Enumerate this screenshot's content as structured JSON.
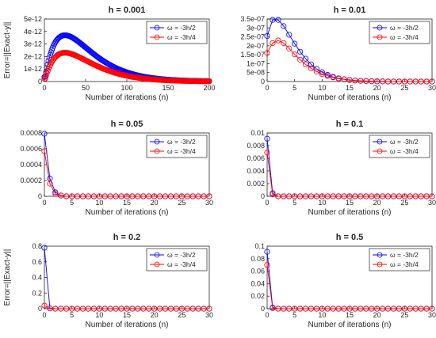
{
  "chart_data": [
    {
      "type": "line",
      "title": "h = 0.001",
      "xlabel": "Number of iterations (n)",
      "ylabel": "Error=||Exact-y||",
      "xlim": [
        0,
        200
      ],
      "ylim": [
        0,
        5e-12
      ],
      "xticks": [
        0,
        50,
        100,
        150,
        200
      ],
      "xtick_labels": [
        "0",
        "50",
        "100",
        "150",
        "200"
      ],
      "yticks": [
        0,
        1e-12,
        2e-12,
        3e-12,
        4e-12,
        5e-12
      ],
      "ytick_labels": [
        "0",
        "1e-12",
        "2e-12",
        "3e-12",
        "4e-12",
        "5e-12"
      ],
      "legend_position": "top-right",
      "series": [
        {
          "name": "ω = -3h/2",
          "color": "#0000ff",
          "curve": "decay",
          "n_max": 200,
          "peak_x": 25,
          "peak_y": 3.7e-12
        },
        {
          "name": "ω = -3h/4",
          "color": "#ff0000",
          "curve": "decay",
          "n_max": 200,
          "peak_x": 25,
          "peak_y": 2.3e-12
        }
      ]
    },
    {
      "type": "line",
      "title": "h = 0.01",
      "xlabel": "Number of iterations (n)",
      "ylabel": "",
      "xlim": [
        0,
        30
      ],
      "ylim": [
        0,
        3.5e-07
      ],
      "xticks": [
        0,
        5,
        10,
        15,
        20,
        25,
        30
      ],
      "xtick_labels": [
        "0",
        "5",
        "10",
        "15",
        "20",
        "25",
        "30"
      ],
      "yticks": [
        0,
        5e-08,
        1e-07,
        1.5e-07,
        2e-07,
        2.5e-07,
        3e-07,
        3.5e-07
      ],
      "ytick_labels": [
        "0",
        "5e-08",
        "1e-07",
        "1.5e-07",
        "2e-07",
        "2.5e-07",
        "3e-07",
        "3.5e-07"
      ],
      "legend_position": "top-right",
      "series": [
        {
          "name": "ω = -3h/2",
          "color": "#0000ff",
          "x": [
            0,
            1,
            2,
            3,
            4,
            5,
            6,
            7,
            8,
            9,
            10,
            11,
            12,
            13,
            14,
            15,
            16,
            17,
            18,
            19,
            20,
            21,
            22,
            23,
            24,
            25,
            26,
            27,
            28,
            29,
            30
          ],
          "y": [
            2.55e-07,
            3.45e-07,
            3.45e-07,
            3.1e-07,
            2.62e-07,
            2.12e-07,
            1.67e-07,
            1.28e-07,
            9.6e-08,
            7.1e-08,
            5.2e-08,
            3.7e-08,
            2.6e-08,
            1.8e-08,
            1.3e-08,
            9e-09,
            6e-09,
            4e-09,
            3e-09,
            2e-09,
            1e-09,
            1e-09,
            0,
            0,
            0,
            0,
            0,
            0,
            0,
            0,
            0
          ]
        },
        {
          "name": "ω = -3h/4",
          "color": "#ff0000",
          "x": [
            0,
            1,
            2,
            3,
            4,
            5,
            6,
            7,
            8,
            9,
            10,
            11,
            12,
            13,
            14,
            15,
            16,
            17,
            18,
            19,
            20,
            21,
            22,
            23,
            24,
            25,
            26,
            27,
            28,
            29,
            30
          ],
          "y": [
            1.6e-07,
            2.15e-07,
            2.3e-07,
            2.15e-07,
            1.85e-07,
            1.52e-07,
            1.22e-07,
            9.6e-08,
            7.4e-08,
            5.6e-08,
            4.2e-08,
            3.1e-08,
            2.3e-08,
            1.6e-08,
            1.2e-08,
            8e-09,
            6e-09,
            4e-09,
            3e-09,
            2e-09,
            1e-09,
            1e-09,
            0,
            0,
            0,
            0,
            0,
            0,
            0,
            0,
            0
          ]
        }
      ]
    },
    {
      "type": "line",
      "title": "h = 0.05",
      "xlabel": "Number of iterations (n)",
      "ylabel": "",
      "xlim": [
        0,
        30
      ],
      "ylim": [
        0,
        0.0008
      ],
      "xticks": [
        0,
        5,
        10,
        15,
        20,
        25,
        30
      ],
      "xtick_labels": [
        "0",
        "5",
        "10",
        "15",
        "20",
        "25",
        "30"
      ],
      "yticks": [
        0,
        0.0002,
        0.0004,
        0.0006,
        0.0008
      ],
      "ytick_labels": [
        "0",
        "0.0002",
        "0.0004",
        "0.0006",
        "0.0008"
      ],
      "legend_position": "top-right",
      "series": [
        {
          "name": "ω = -3h/2",
          "color": "#0000ff",
          "x": [
            0,
            1,
            2,
            3,
            4,
            5,
            6,
            7,
            8,
            9,
            10,
            11,
            12,
            13,
            14,
            15,
            16,
            17,
            18,
            19,
            20,
            21,
            22,
            23,
            24,
            25,
            26,
            27,
            28,
            29,
            30
          ],
          "y": [
            0.00079,
            0.000225,
            5e-05,
            1e-05,
            0,
            0,
            0,
            0,
            0,
            0,
            0,
            0,
            0,
            0,
            0,
            0,
            0,
            0,
            0,
            0,
            0,
            0,
            0,
            0,
            0,
            0,
            0,
            0,
            0,
            0,
            0
          ]
        },
        {
          "name": "ω = -3h/4",
          "color": "#ff0000",
          "x": [
            0,
            1,
            2,
            3,
            4,
            5,
            6,
            7,
            8,
            9,
            10,
            11,
            12,
            13,
            14,
            15,
            16,
            17,
            18,
            19,
            20,
            21,
            22,
            23,
            24,
            25,
            26,
            27,
            28,
            29,
            30
          ],
          "y": [
            0.00057,
            0.00016,
            3e-05,
            1e-05,
            0,
            0,
            0,
            0,
            0,
            0,
            0,
            0,
            0,
            0,
            0,
            0,
            0,
            0,
            0,
            0,
            0,
            0,
            0,
            0,
            0,
            0,
            0,
            0,
            0,
            0,
            0
          ]
        }
      ]
    },
    {
      "type": "line",
      "title": "h = 0.1",
      "xlabel": "Number of iterations (n)",
      "ylabel": "",
      "xlim": [
        0,
        30
      ],
      "ylim": [
        0,
        0.01
      ],
      "xticks": [
        0,
        5,
        10,
        15,
        20,
        25,
        30
      ],
      "xtick_labels": [
        "0",
        "5",
        "10",
        "15",
        "20",
        "25",
        "30"
      ],
      "yticks": [
        0,
        0.002,
        0.004,
        0.006,
        0.008,
        0.01
      ],
      "ytick_labels": [
        "0",
        "0.002",
        "0.004",
        "0.006",
        "0.008",
        "0.01"
      ],
      "legend_position": "top-right",
      "series": [
        {
          "name": "ω = -3h/2",
          "color": "#0000ff",
          "x": [
            0,
            1,
            2,
            3,
            4,
            5,
            6,
            7,
            8,
            9,
            10,
            11,
            12,
            13,
            14,
            15,
            16,
            17,
            18,
            19,
            20,
            21,
            22,
            23,
            24,
            25,
            26,
            27,
            28,
            29,
            30
          ],
          "y": [
            0.0091,
            0.0005,
            0,
            0,
            0,
            0,
            0,
            0,
            0,
            0,
            0,
            0,
            0,
            0,
            0,
            0,
            0,
            0,
            0,
            0,
            0,
            0,
            0,
            0,
            0,
            0,
            0,
            0,
            0,
            0,
            0
          ]
        },
        {
          "name": "ω = -3h/4",
          "color": "#ff0000",
          "x": [
            0,
            1,
            2,
            3,
            4,
            5,
            6,
            7,
            8,
            9,
            10,
            11,
            12,
            13,
            14,
            15,
            16,
            17,
            18,
            19,
            20,
            21,
            22,
            23,
            24,
            25,
            26,
            27,
            28,
            29,
            30
          ],
          "y": [
            0.0069,
            0.0003,
            0,
            0,
            0,
            0,
            0,
            0,
            0,
            0,
            0,
            0,
            0,
            0,
            0,
            0,
            0,
            0,
            0,
            0,
            0,
            0,
            0,
            0,
            0,
            0,
            0,
            0,
            0,
            0,
            0
          ]
        }
      ]
    },
    {
      "type": "line",
      "title": "h = 0.2",
      "xlabel": "Number of iterations (n)",
      "ylabel": "Error=||Exact-y||",
      "xlim": [
        0,
        30
      ],
      "ylim": [
        0,
        0.8
      ],
      "xticks": [
        0,
        5,
        10,
        15,
        20,
        25,
        30
      ],
      "xtick_labels": [
        "0",
        "5",
        "10",
        "15",
        "20",
        "25",
        "30"
      ],
      "yticks": [
        0,
        0.2,
        0.4,
        0.6,
        0.8
      ],
      "ytick_labels": [
        "0",
        "0.2",
        "0.4",
        "0.6",
        "0.8"
      ],
      "legend_position": "top-right",
      "series": [
        {
          "name": "ω = -3h/2",
          "color": "#0000ff",
          "x": [
            0,
            1,
            2,
            3,
            4,
            5,
            6,
            7,
            8,
            9,
            10,
            11,
            12,
            13,
            14,
            15,
            16,
            17,
            18,
            19,
            20,
            21,
            22,
            23,
            24,
            25,
            26,
            27,
            28,
            29,
            30
          ],
          "y": [
            0.78,
            0.005,
            0,
            0,
            0,
            0,
            0,
            0,
            0,
            0,
            0,
            0,
            0,
            0,
            0,
            0,
            0,
            0,
            0,
            0,
            0,
            0,
            0,
            0,
            0,
            0,
            0,
            0,
            0,
            0,
            0
          ]
        },
        {
          "name": "ω = -3h/4",
          "color": "#ff0000",
          "x": [
            0,
            1,
            2,
            3,
            4,
            5,
            6,
            7,
            8,
            9,
            10,
            11,
            12,
            13,
            14,
            15,
            16,
            17,
            18,
            19,
            20,
            21,
            22,
            23,
            24,
            25,
            26,
            27,
            28,
            29,
            30
          ],
          "y": [
            0.04,
            0.003,
            0,
            0,
            0,
            0,
            0,
            0,
            0,
            0,
            0,
            0,
            0,
            0,
            0,
            0,
            0,
            0,
            0,
            0,
            0,
            0,
            0,
            0,
            0,
            0,
            0,
            0,
            0,
            0,
            0
          ]
        }
      ]
    },
    {
      "type": "line",
      "title": "h = 0.5",
      "xlabel": "Number of iterations (n)",
      "ylabel": "",
      "xlim": [
        0,
        30
      ],
      "ylim": [
        0,
        0.1
      ],
      "xticks": [
        0,
        5,
        10,
        15,
        20,
        25,
        30
      ],
      "xtick_labels": [
        "0",
        "5",
        "10",
        "15",
        "20",
        "25",
        "30"
      ],
      "yticks": [
        0,
        0.02,
        0.04,
        0.06,
        0.08,
        0.1
      ],
      "ytick_labels": [
        "0",
        "0.02",
        "0.04",
        "0.06",
        "0.08",
        "0.1"
      ],
      "legend_position": "top-right",
      "series": [
        {
          "name": "ω = -3h/2",
          "color": "#0000ff",
          "x": [
            0,
            1,
            2,
            3,
            4,
            5,
            6,
            7,
            8,
            9,
            10,
            11,
            12,
            13,
            14,
            15,
            16,
            17,
            18,
            19,
            20,
            21,
            22,
            23,
            24,
            25,
            26,
            27,
            28,
            29,
            30
          ],
          "y": [
            0.091,
            0.002,
            0,
            0,
            0,
            0,
            0,
            0,
            0,
            0,
            0,
            0,
            0,
            0,
            0,
            0,
            0,
            0,
            0,
            0,
            0,
            0,
            0,
            0,
            0,
            0,
            0,
            0,
            0,
            0,
            0
          ]
        },
        {
          "name": "ω = -3h/4",
          "color": "#ff0000",
          "x": [
            0,
            1,
            2,
            3,
            4,
            5,
            6,
            7,
            8,
            9,
            10,
            11,
            12,
            13,
            14,
            15,
            16,
            17,
            18,
            19,
            20,
            21,
            22,
            23,
            24,
            25,
            26,
            27,
            28,
            29,
            30
          ],
          "y": [
            0.07,
            0.001,
            0,
            0,
            0,
            0,
            0,
            0,
            0,
            0,
            0,
            0,
            0,
            0,
            0,
            0,
            0,
            0,
            0,
            0,
            0,
            0,
            0,
            0,
            0,
            0,
            0,
            0,
            0,
            0,
            0
          ]
        }
      ]
    }
  ]
}
